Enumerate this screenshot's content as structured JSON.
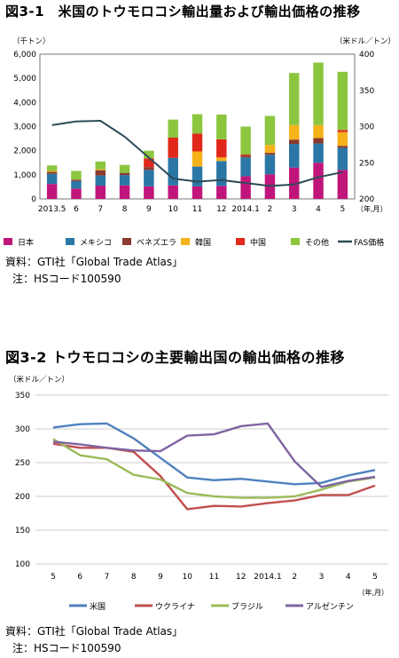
{
  "fig1": {
    "title": "図3-1　米国のトウモロコシ輸出量および輸出価格の推移",
    "left_unit": "（千トン）",
    "right_unit": "（米ドル／トン）",
    "x_unit": "（年,月）",
    "source_line1": "資料：GTI社「Global Trade Atlas」",
    "source_line2": "注：HSコード100590"
  },
  "fig2": {
    "title": "図3-2 トウモロコシの主要輸出国の輸出価格の推移",
    "y_unit": "（米ドル／トン）",
    "x_unit": "（年,月）",
    "source_line1": "資料：GTI社「Global Trade Atlas」",
    "source_line2": "注：HSコード100590"
  },
  "chart_data": [
    {
      "type": "bar",
      "stacked": true,
      "title": "図3-1　米国のトウモロコシ輸出量および輸出価格の推移",
      "categories": [
        "2013.5",
        "6",
        "7",
        "8",
        "9",
        "10",
        "11",
        "12",
        "2014.1",
        "2",
        "3",
        "4",
        "5"
      ],
      "ylim": [
        0,
        6000
      ],
      "yticks": [
        "0",
        "1,000",
        "2,000",
        "3,000",
        "4,000",
        "5,000",
        "6,000"
      ],
      "y2lim": [
        200,
        400
      ],
      "y2ticks": [
        "200",
        "250",
        "300",
        "350",
        "400"
      ],
      "legend_position": "bottom",
      "series": [
        {
          "name": "日本",
          "color": "#c0167b",
          "values": [
            620,
            430,
            550,
            560,
            520,
            560,
            520,
            540,
            940,
            1020,
            1300,
            1500,
            1200
          ]
        },
        {
          "name": "メキシコ",
          "color": "#2a77a6",
          "values": [
            420,
            310,
            420,
            430,
            680,
            1140,
            820,
            1030,
            780,
            810,
            980,
            800,
            920
          ]
        },
        {
          "name": "ベネズエラ",
          "color": "#8b3a2e",
          "values": [
            80,
            60,
            220,
            90,
            120,
            0,
            0,
            0,
            80,
            80,
            180,
            220,
            80
          ]
        },
        {
          "name": "韓国",
          "color": "#f5b21a",
          "values": [
            40,
            0,
            40,
            0,
            0,
            0,
            630,
            150,
            0,
            330,
            600,
            540,
            570
          ]
        },
        {
          "name": "中国",
          "color": "#e0291b",
          "values": [
            0,
            0,
            0,
            0,
            360,
            840,
            740,
            750,
            40,
            0,
            0,
            0,
            90
          ]
        },
        {
          "name": "その他",
          "color": "#8cc63f",
          "values": [
            230,
            360,
            320,
            330,
            320,
            750,
            800,
            1030,
            1160,
            1200,
            2160,
            2590,
            2410
          ]
        }
      ],
      "line": {
        "name": "FAS価格",
        "color": "#2e4b57",
        "axis": "right",
        "values": [
          302,
          307,
          308,
          286,
          257,
          228,
          224,
          226,
          222,
          218,
          220,
          230,
          237
        ]
      }
    },
    {
      "type": "line",
      "title": "図3-2 トウモロコシの主要輸出国の輸出価格の推移",
      "categories": [
        "5",
        "6",
        "7",
        "8",
        "9",
        "10",
        "11",
        "12",
        "2014.1",
        "2",
        "3",
        "4",
        "5"
      ],
      "ylim": [
        100,
        350
      ],
      "yticks": [
        "100",
        "150",
        "200",
        "250",
        "300",
        "350"
      ],
      "legend_position": "bottom",
      "series": [
        {
          "name": "米国",
          "color": "#4f81bd",
          "values": [
            302,
            307,
            308,
            286,
            257,
            228,
            224,
            226,
            222,
            218,
            220,
            231,
            239
          ]
        },
        {
          "name": "ウクライナ",
          "color": "#c0504d",
          "values": [
            278,
            272,
            272,
            266,
            230,
            181,
            186,
            185,
            190,
            194,
            202,
            202,
            216
          ]
        },
        {
          "name": "ブラジル",
          "color": "#9bbb59",
          "values": [
            285,
            261,
            255,
            232,
            225,
            205,
            200,
            198,
            198,
            200,
            210,
            222,
            228
          ]
        },
        {
          "name": "アルゼンチン",
          "color": "#8064a2",
          "values": [
            281,
            277,
            272,
            268,
            267,
            290,
            292,
            304,
            308,
            252,
            214,
            223,
            229
          ]
        }
      ]
    }
  ]
}
